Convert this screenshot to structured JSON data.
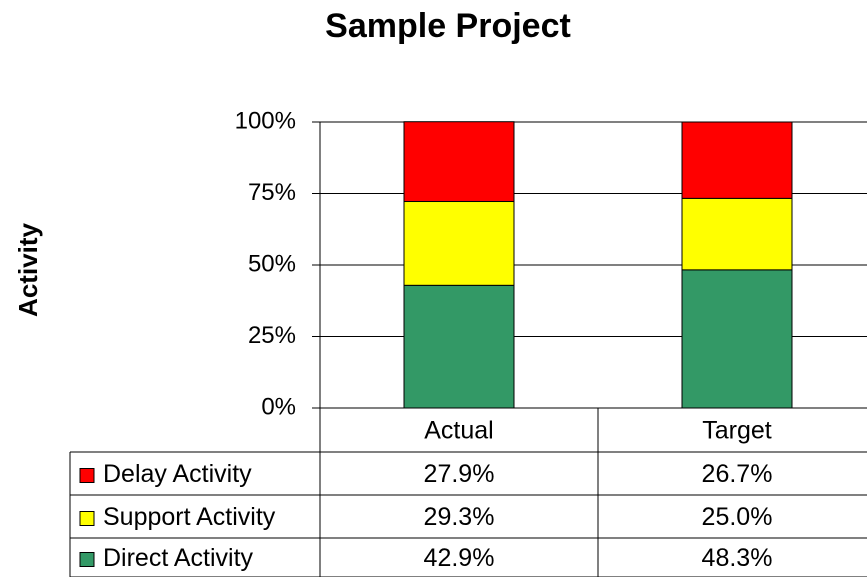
{
  "chart_data": {
    "type": "stacked_bar",
    "title": "Sample Project",
    "y_label": "Activity",
    "categories": [
      "Actual",
      "Target"
    ],
    "series": [
      {
        "name": "Direct Activity",
        "color": "#339966",
        "values": [
          42.9,
          48.3
        ],
        "value_labels": [
          "42.9%",
          "48.3%"
        ]
      },
      {
        "name": "Support Activity",
        "color": "#ffff00",
        "values": [
          29.3,
          25.0
        ],
        "value_labels": [
          "29.3%",
          "25.0%"
        ]
      },
      {
        "name": "Delay Activity",
        "color": "#ff0000",
        "values": [
          27.9,
          26.7
        ],
        "value_labels": [
          "27.9%",
          "26.7%"
        ]
      }
    ],
    "ylim": [
      0,
      100
    ],
    "yticks": [
      {
        "value": 0,
        "label": "0%"
      },
      {
        "value": 25,
        "label": "25%"
      },
      {
        "value": 50,
        "label": "50%"
      },
      {
        "value": 75,
        "label": "75%"
      },
      {
        "value": 100,
        "label": "100%"
      }
    ],
    "grid": true
  }
}
